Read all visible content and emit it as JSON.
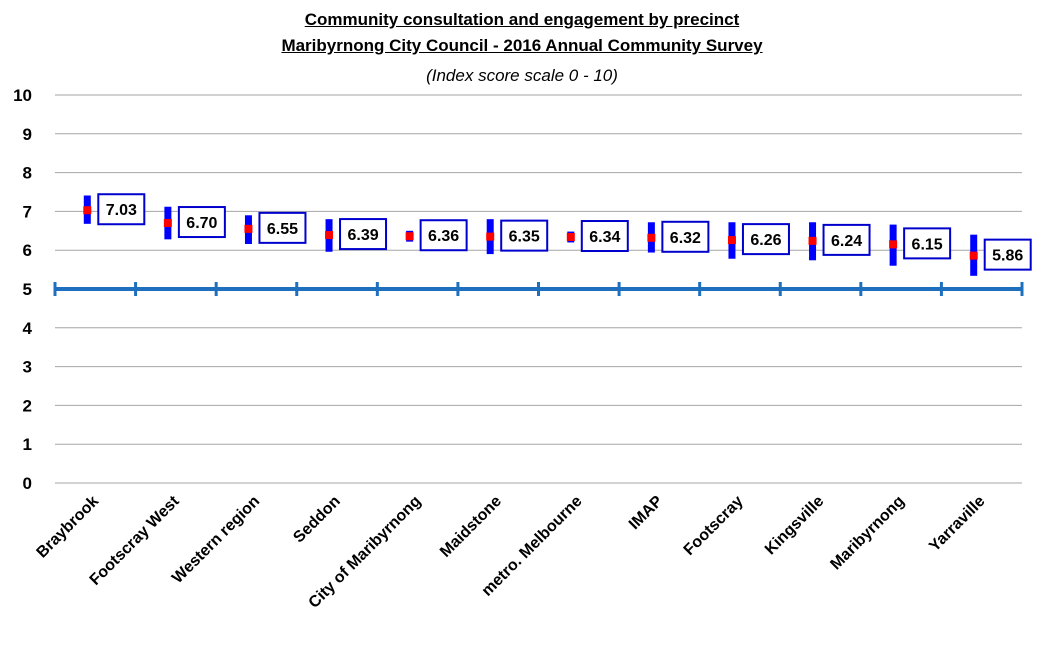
{
  "chart_data": {
    "type": "scatter",
    "title": "Community consultation and engagement by precinct",
    "title_line2": "Maribyrnong City Council - 2016 Annual Community Survey",
    "subtitle": "(Index score scale 0 - 10)",
    "xlabel": "",
    "ylabel": "",
    "ylim": [
      0,
      10
    ],
    "yticks": [
      "0",
      "1",
      "2",
      "3",
      "4",
      "5",
      "6",
      "7",
      "8",
      "9",
      "10"
    ],
    "reference_line": 5,
    "grid": true,
    "categories": [
      "Braybrook",
      "Footscray West",
      "Western region",
      "Seddon",
      "City of Maribyrnong",
      "Maidstone",
      "metro. Melbourne",
      "IMAP",
      "Footscray",
      "Kingsville",
      "Maribyrnong",
      "Yarraville"
    ],
    "values": [
      7.03,
      6.7,
      6.55,
      6.39,
      6.36,
      6.35,
      6.34,
      6.32,
      6.26,
      6.24,
      6.15,
      5.86
    ],
    "value_labels": [
      "7.03",
      "6.70",
      "6.55",
      "6.39",
      "6.36",
      "6.35",
      "6.34",
      "6.32",
      "6.26",
      "6.24",
      "6.15",
      "5.86"
    ],
    "ci_low": [
      6.68,
      6.28,
      6.16,
      5.96,
      6.22,
      5.9,
      6.2,
      5.94,
      5.78,
      5.74,
      5.6,
      5.34
    ],
    "ci_high": [
      7.41,
      7.12,
      6.9,
      6.8,
      6.5,
      6.8,
      6.48,
      6.72,
      6.72,
      6.72,
      6.66,
      6.4
    ],
    "colors": {
      "marker": "#ff0000",
      "error_bar": "#0000ff",
      "label_border": "#0000cc",
      "reference_line": "#1f6fbf",
      "grid": "#a6a6a6"
    }
  }
}
